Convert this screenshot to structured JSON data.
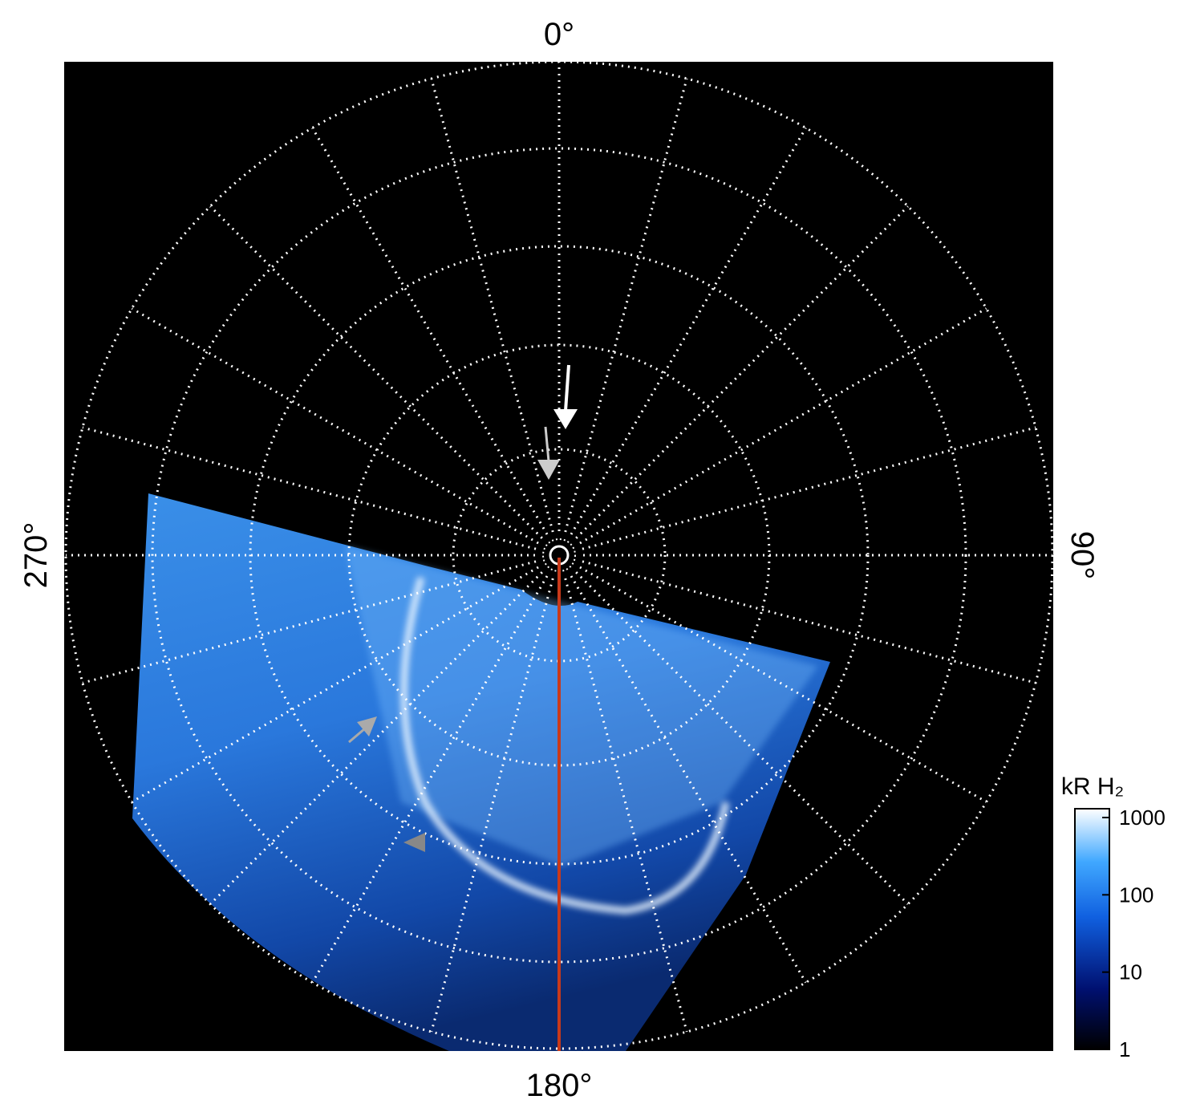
{
  "axis_labels": {
    "top": "0°",
    "right": "90°",
    "bottom": "180°",
    "left": "270°"
  },
  "colorbar": {
    "title": "kR H₂",
    "ticks": [
      1,
      10,
      100,
      1000
    ],
    "lim": [
      1,
      1300
    ],
    "log": true
  }
}
